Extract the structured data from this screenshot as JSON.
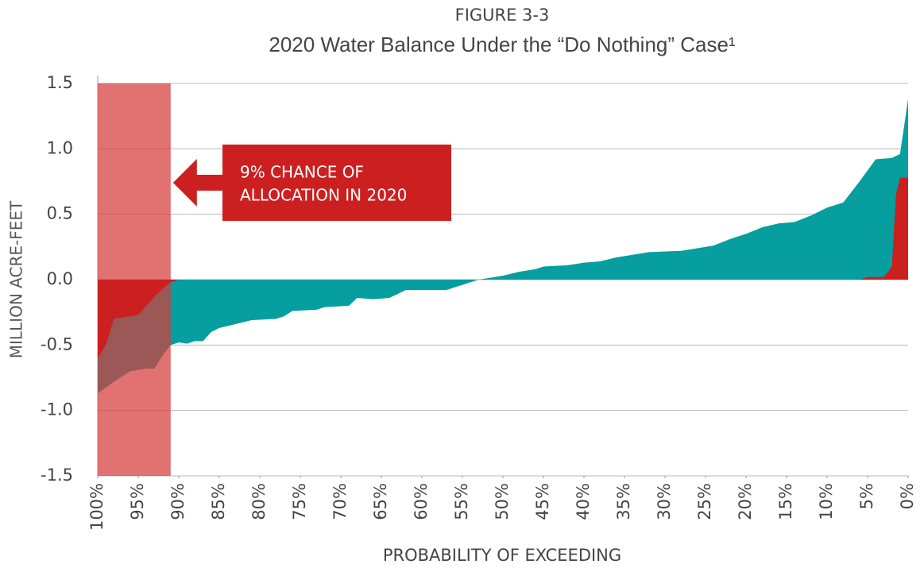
{
  "chart_data": {
    "type": "area",
    "title": "FIGURE 3-3",
    "subtitle": "2020 Water Balance Under the “Do Nothing” Case¹",
    "x_label": "PROBABILITY OF EXCEEDING",
    "y_label": "MILLION ACRE-FEET",
    "xlim": [
      100,
      0
    ],
    "ylim": [
      -1.5,
      1.5
    ],
    "xticks": [
      {
        "value": 100,
        "label": "100%"
      },
      {
        "value": 95,
        "label": "95%"
      },
      {
        "value": 90,
        "label": "90%"
      },
      {
        "value": 85,
        "label": "85%"
      },
      {
        "value": 80,
        "label": "80%"
      },
      {
        "value": 75,
        "label": "75%"
      },
      {
        "value": 70,
        "label": "70%"
      },
      {
        "value": 65,
        "label": "65%"
      },
      {
        "value": 60,
        "label": "60%"
      },
      {
        "value": 55,
        "label": "55%"
      },
      {
        "value": 50,
        "label": "50%"
      },
      {
        "value": 45,
        "label": "45%"
      },
      {
        "value": 40,
        "label": "40%"
      },
      {
        "value": 35,
        "label": "35%"
      },
      {
        "value": 30,
        "label": "30%"
      },
      {
        "value": 25,
        "label": "25%"
      },
      {
        "value": 20,
        "label": "20%"
      },
      {
        "value": 15,
        "label": "15%"
      },
      {
        "value": 10,
        "label": "10%"
      },
      {
        "value": 5,
        "label": "5%"
      },
      {
        "value": 0,
        "label": "0%"
      }
    ],
    "yticks": [
      1.5,
      {
        "value": 1,
        "label": "1.0"
      },
      0.5,
      {
        "value": 0,
        "label": "0.0"
      },
      -0.5,
      {
        "value": -1,
        "label": "-1.0"
      },
      -1.5
    ],
    "grid": true,
    "series": [
      {
        "color": "#069e9e",
        "x": [
          100,
          98,
          96,
          94,
          93,
          92,
          91,
          90,
          89,
          88,
          87,
          86,
          85,
          83,
          81,
          78,
          77,
          76,
          73,
          72,
          69,
          68,
          66,
          64,
          62,
          57,
          55,
          53,
          50,
          48,
          46,
          45,
          42,
          40,
          38,
          36,
          34,
          32,
          28,
          26,
          24,
          22,
          20,
          18,
          16,
          14,
          12,
          10,
          8,
          6,
          4,
          2,
          1,
          0
        ],
        "values": [
          -0.87,
          -0.78,
          -0.7,
          -0.68,
          -0.68,
          -0.58,
          -0.5,
          -0.48,
          -0.49,
          -0.47,
          -0.47,
          -0.4,
          -0.37,
          -0.34,
          -0.31,
          -0.3,
          -0.28,
          -0.24,
          -0.23,
          -0.21,
          -0.2,
          -0.14,
          -0.15,
          -0.14,
          -0.08,
          -0.08,
          -0.04,
          0,
          0.03,
          0.06,
          0.08,
          0.1,
          0.11,
          0.13,
          0.14,
          0.17,
          0.19,
          0.21,
          0.22,
          0.24,
          0.26,
          0.31,
          0.35,
          0.4,
          0.43,
          0.44,
          0.49,
          0.55,
          0.59,
          0.75,
          0.92,
          0.93,
          0.96,
          1.38
        ]
      },
      {
        "color": "#cc2020",
        "x": [
          100,
          99,
          98,
          96,
          95,
          94,
          93,
          92,
          91,
          90,
          6,
          5,
          3,
          2,
          1.5,
          1,
          0
        ],
        "values": [
          -0.6,
          -0.5,
          -0.3,
          -0.28,
          -0.27,
          -0.2,
          -0.13,
          -0.07,
          -0.02,
          0,
          0,
          0.02,
          0.02,
          0.1,
          0.65,
          0.78,
          0.78
        ]
      }
    ],
    "highlight": {
      "from": 100,
      "to": 91,
      "color": "#d73c3c"
    },
    "annotation": {
      "lines": [
        "9% CHANCE OF",
        "ALLOCATION IN 2020"
      ],
      "color": "#cc2020"
    }
  }
}
